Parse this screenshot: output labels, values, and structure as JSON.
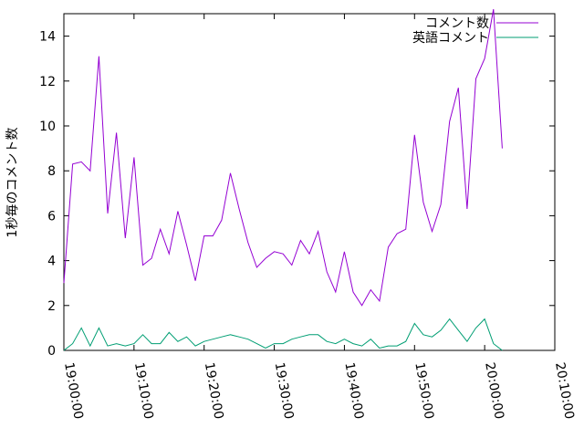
{
  "chart_data": {
    "type": "line",
    "y_label": "1秒毎のコメント数",
    "x": [
      "19:00:00",
      "19:01:15",
      "19:02:30",
      "19:03:45",
      "19:05:00",
      "19:06:15",
      "19:07:30",
      "19:08:45",
      "19:10:00",
      "19:11:15",
      "19:12:30",
      "19:13:45",
      "19:15:00",
      "19:16:15",
      "19:17:30",
      "19:18:45",
      "19:20:00",
      "19:21:15",
      "19:22:30",
      "19:23:45",
      "19:25:00",
      "19:26:15",
      "19:27:30",
      "19:28:45",
      "19:30:00",
      "19:31:15",
      "19:32:30",
      "19:33:45",
      "19:35:00",
      "19:36:15",
      "19:37:30",
      "19:38:45",
      "19:40:00",
      "19:41:15",
      "19:42:30",
      "19:43:45",
      "19:45:00",
      "19:46:15",
      "19:47:30",
      "19:48:45",
      "19:50:00",
      "19:51:15",
      "19:52:30",
      "19:53:45",
      "19:55:00",
      "19:56:15",
      "19:57:30",
      "19:58:45",
      "20:00:00",
      "20:01:15",
      "20:02:30"
    ],
    "series": [
      {
        "name": "コメント数",
        "color": "#9400d3",
        "values": [
          3,
          8.3,
          8.4,
          8.0,
          13.1,
          6.1,
          9.7,
          5,
          8.6,
          3.8,
          4.1,
          5.4,
          4.3,
          6.2,
          4.7,
          3.1,
          5.1,
          5.1,
          5.8,
          7.9,
          6.3,
          4.8,
          3.7,
          4.1,
          4.4,
          4.3,
          3.8,
          4.9,
          4.3,
          5.3,
          3.5,
          2.6,
          4.4,
          2.6,
          2,
          2.7,
          2.2,
          4.6,
          5.2,
          5.4,
          9.6,
          6.6,
          5.3,
          6.5,
          10.2,
          11.7,
          6.3,
          12.1,
          13,
          15.2,
          9
        ]
      },
      {
        "name": "英語コメント",
        "color": "#009e73",
        "values": [
          0,
          0.3,
          1.0,
          0.2,
          1.0,
          0.2,
          0.3,
          0.2,
          0.3,
          0.7,
          0.3,
          0.3,
          0.8,
          0.4,
          0.6,
          0.2,
          0.4,
          0.5,
          0.6,
          0.7,
          0.6,
          0.5,
          0.3,
          0.1,
          0.3,
          0.3,
          0.5,
          0.6,
          0.7,
          0.7,
          0.4,
          0.3,
          0.5,
          0.3,
          0.2,
          0.5,
          0.1,
          0.2,
          0.2,
          0.4,
          1.2,
          0.7,
          0.6,
          0.9,
          1.4,
          0.9,
          0.4,
          1.0,
          1.4,
          0.3,
          0
        ]
      }
    ],
    "xlim": [
      "19:00:00",
      "20:10:00"
    ],
    "xticks": [
      "19:00:00",
      "19:10:00",
      "19:20:00",
      "19:30:00",
      "19:40:00",
      "19:50:00",
      "20:00:00",
      "20:10:00"
    ],
    "ylim": [
      0,
      15
    ],
    "yticks": [
      0,
      2,
      4,
      6,
      8,
      10,
      12,
      14
    ],
    "legend": "top right"
  }
}
